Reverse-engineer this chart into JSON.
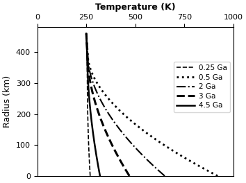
{
  "title": "Temperature (K)",
  "ylabel": "Radius (km)",
  "xlim": [
    0,
    1000
  ],
  "ylim": [
    0,
    480
  ],
  "xticks": [
    0,
    250,
    500,
    750,
    1000
  ],
  "yticks": [
    0,
    100,
    200,
    300,
    400
  ],
  "r_top": 460,
  "T_surface": 250,
  "curves": [
    {
      "label": "0.25 Ga",
      "linestyle": "--",
      "linewidth": 1.2,
      "T_junction": 255,
      "r_junction": 390,
      "T_base": 270,
      "exponent": 2.5
    },
    {
      "label": "0.5 Ga",
      "linestyle": ":",
      "linewidth": 2.0,
      "T_junction": 258,
      "r_junction": 390,
      "T_base": 920,
      "exponent": 1.8
    },
    {
      "label": "2 Ga",
      "linestyle": "-.",
      "linewidth": 1.5,
      "T_junction": 257,
      "r_junction": 390,
      "T_base": 650,
      "exponent": 1.8
    },
    {
      "label": "3 Ga",
      "linestyle": "--",
      "linewidth": 2.2,
      "T_junction": 256,
      "r_junction": 390,
      "T_base": 470,
      "exponent": 1.8
    },
    {
      "label": "4.5 Ga",
      "linestyle": "-",
      "linewidth": 1.8,
      "T_junction": 255,
      "r_junction": 390,
      "T_base": 320,
      "exponent": 1.8
    }
  ]
}
